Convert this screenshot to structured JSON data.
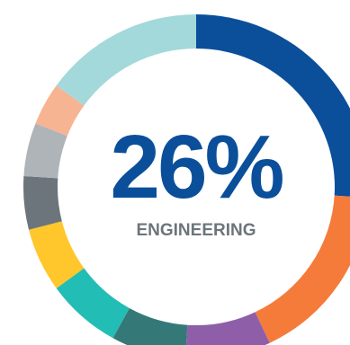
{
  "chart_data": {
    "type": "pie",
    "style": "donut",
    "highlight_value": "26%",
    "highlight_label": "ENGINEERING",
    "slices": [
      {
        "value": 26,
        "color": "#0B4F9B"
      },
      {
        "value": 17,
        "color": "#F47B3A"
      },
      {
        "value": 8,
        "color": "#8E5FA8"
      },
      {
        "value": 7,
        "color": "#357878"
      },
      {
        "value": 7,
        "color": "#22BDB5"
      },
      {
        "value": 6,
        "color": "#FFC72C"
      },
      {
        "value": 5,
        "color": "#6C757B"
      },
      {
        "value": 5,
        "color": "#AFB4B9"
      },
      {
        "value": 4,
        "color": "#F7B493"
      },
      {
        "value": 15,
        "color": "#A3D9DA"
      }
    ],
    "colors": {
      "value_text": "#0B4F9B",
      "label_text": "#6C757B"
    }
  }
}
